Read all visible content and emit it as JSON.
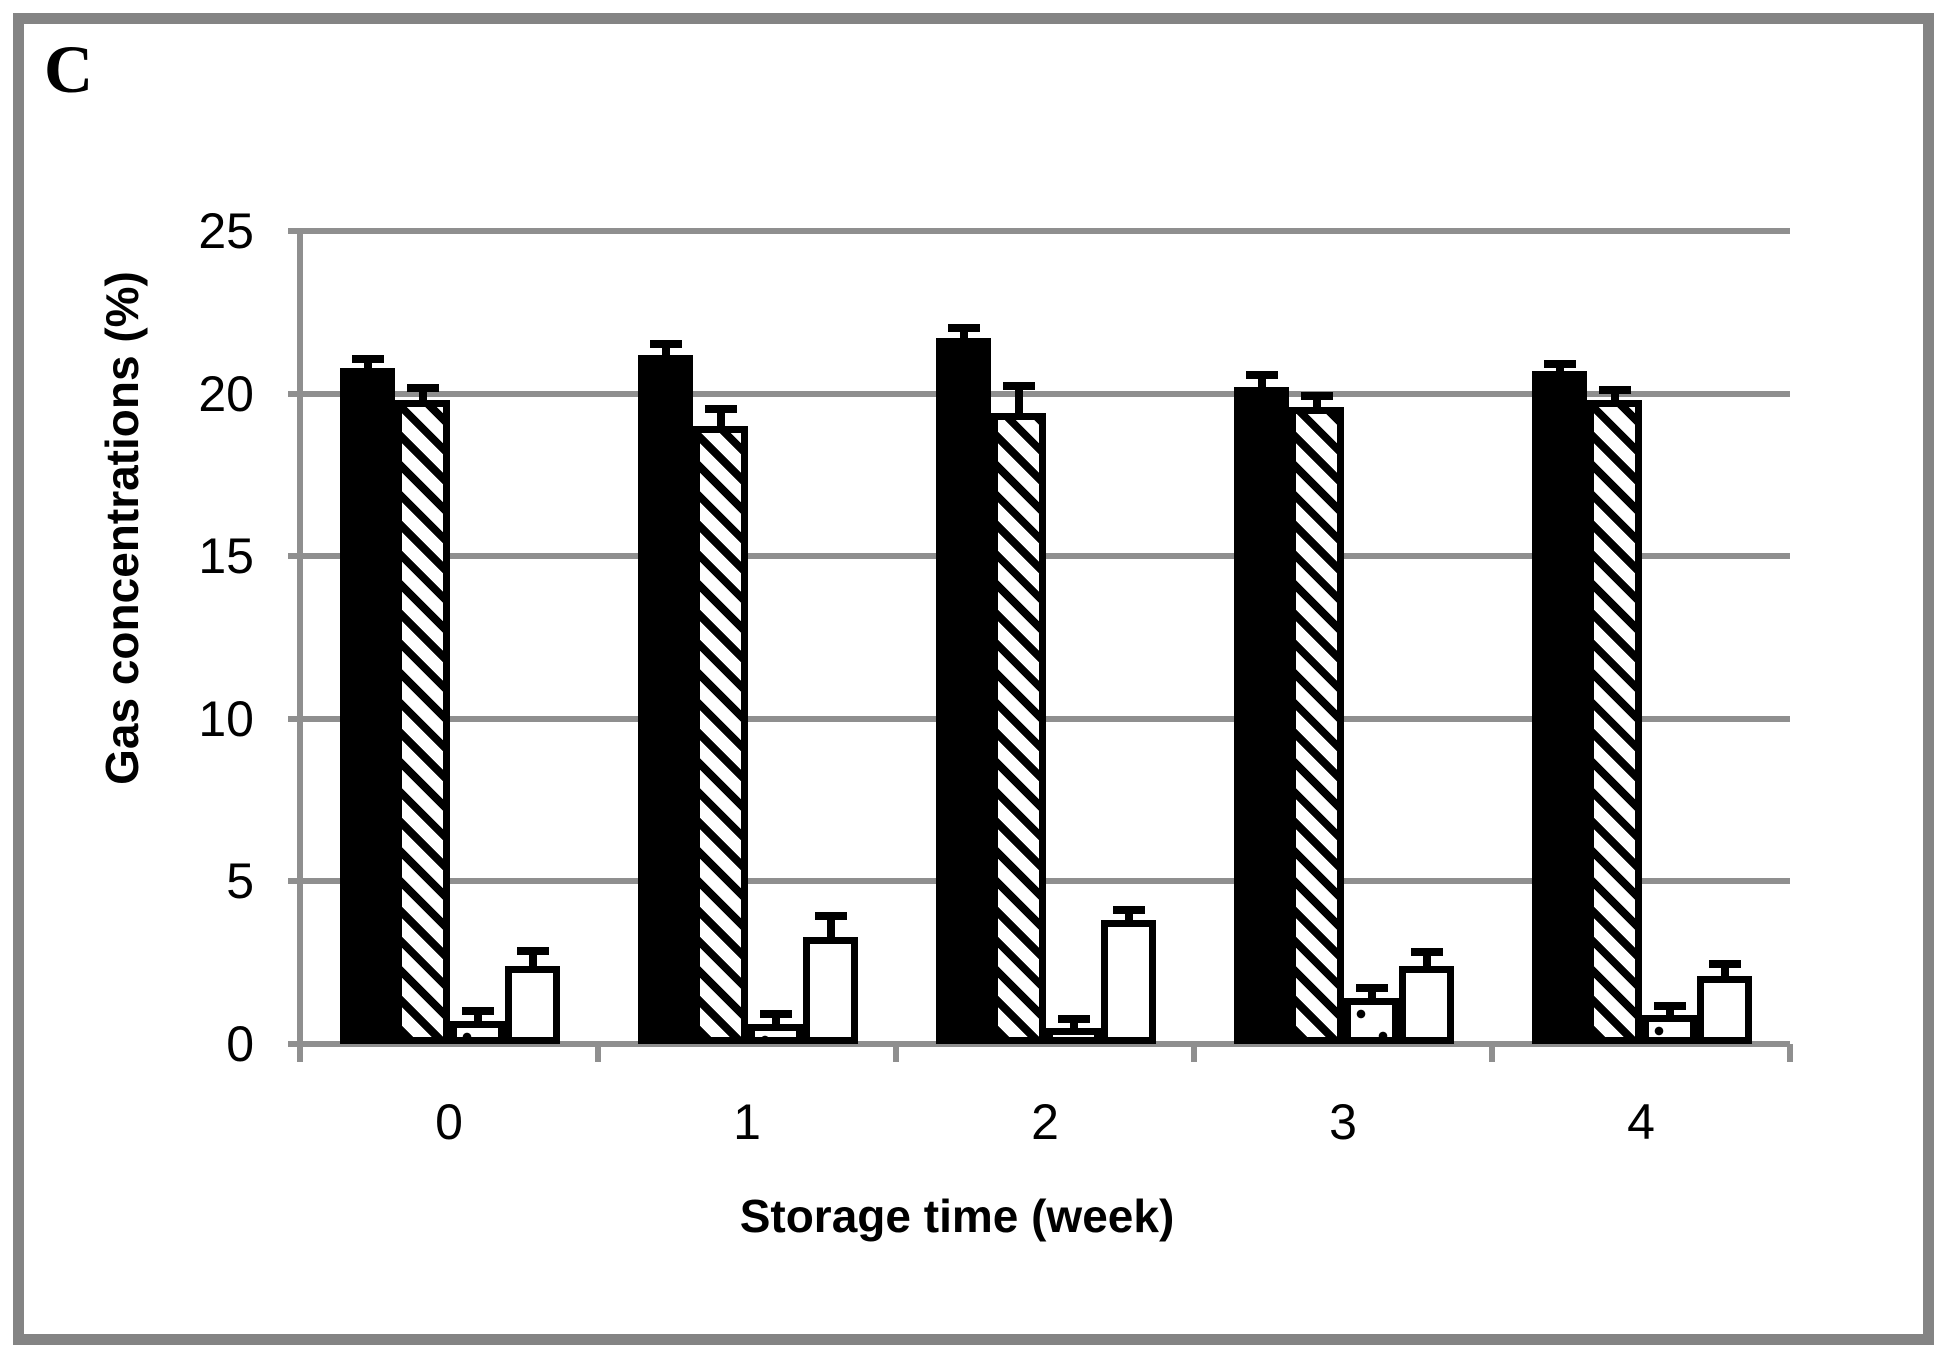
{
  "figure": {
    "panel_label": "C"
  },
  "chart_data": {
    "type": "bar",
    "title": "",
    "xlabel": "Storage time (week)",
    "ylabel": "Gas concentrations (%)",
    "categories": [
      "0",
      "1",
      "2",
      "3",
      "4"
    ],
    "series": [
      {
        "name": "solid-black-bar",
        "style": "solid-black",
        "values": [
          20.8,
          21.2,
          21.7,
          20.2,
          20.7
        ],
        "errors": [
          0.15,
          0.2,
          0.2,
          0.25,
          0.1
        ]
      },
      {
        "name": "diagonal-hatch-bar",
        "style": "diagonal-hatch",
        "values": [
          19.8,
          19.0,
          19.4,
          19.6,
          19.8
        ],
        "errors": [
          0.25,
          0.4,
          0.7,
          0.2,
          0.2
        ]
      },
      {
        "name": "dotted-bar",
        "style": "dotted",
        "values": [
          0.7,
          0.6,
          0.5,
          1.4,
          0.9
        ],
        "errors": [
          0.2,
          0.2,
          0.15,
          0.2,
          0.15
        ]
      },
      {
        "name": "white-bar",
        "style": "white",
        "values": [
          2.4,
          3.3,
          3.8,
          2.4,
          2.1
        ],
        "errors": [
          0.35,
          0.5,
          0.2,
          0.3,
          0.25
        ]
      }
    ],
    "ylim": [
      0,
      25
    ],
    "yticks": [
      0,
      5,
      10,
      15,
      20,
      25
    ],
    "grid": true,
    "legend": false,
    "colors": {
      "bar_black": "#000000",
      "grid_gray": "#8f8f8f",
      "frame_gray": "#848484",
      "background": "#ffffff"
    }
  }
}
